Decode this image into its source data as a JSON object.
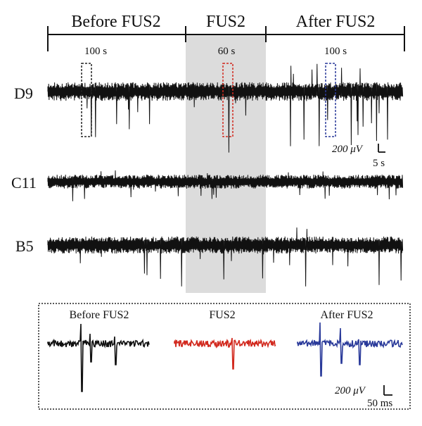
{
  "header": {
    "phases": [
      {
        "label": "Before FUS2",
        "duration": "100 s"
      },
      {
        "label": "FUS2",
        "duration": "60 s"
      },
      {
        "label": "After FUS2",
        "duration": "100 s"
      }
    ]
  },
  "channels": [
    {
      "label": "D9"
    },
    {
      "label": "C11"
    },
    {
      "label": "B5"
    }
  ],
  "scale_bar_main": {
    "amplitude": "200 μV",
    "time": "5 s"
  },
  "inset": {
    "panels": [
      {
        "label": "Before FUS2",
        "color": "#111111"
      },
      {
        "label": "FUS2",
        "color": "#d22a1f"
      },
      {
        "label": "After FUS2",
        "color": "#2a3a9a"
      }
    ],
    "scale_bar": {
      "amplitude": "200 μV",
      "time": "50 ms"
    }
  },
  "colors": {
    "trace": "#111111",
    "stim_shade": "#dcdcdc",
    "box_before": "#222222",
    "box_fus": "#d22a1f",
    "box_after": "#2a3a9a"
  }
}
